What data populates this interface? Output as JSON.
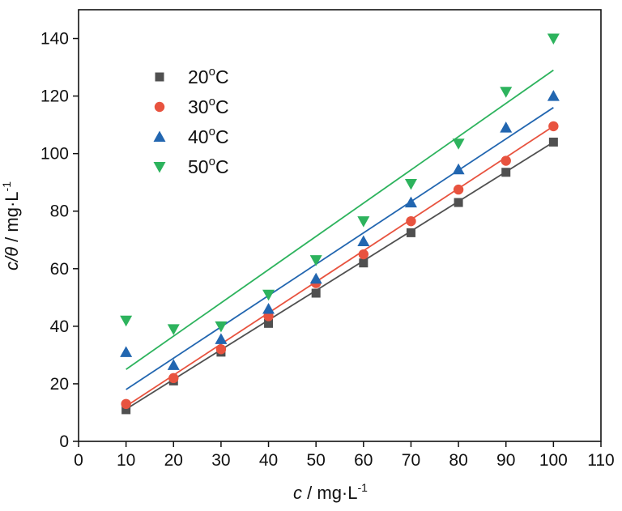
{
  "chart_data": {
    "type": "scatter",
    "xlabel": "c / mg·L-1",
    "ylabel": "c/θ / mg·L-1",
    "xlabel_parts": {
      "var": "c",
      "unit": " / mg·L",
      "sup": "-1"
    },
    "ylabel_parts": {
      "var": "c/θ",
      "unit": " / mg·L",
      "sup": "-1"
    },
    "xlim": [
      0,
      110
    ],
    "ylim": [
      0,
      150
    ],
    "xticks": [
      0,
      10,
      20,
      30,
      40,
      50,
      60,
      70,
      80,
      90,
      100,
      110
    ],
    "yticks": [
      0,
      20,
      40,
      60,
      80,
      100,
      120,
      140
    ],
    "grid": false,
    "legend_position": "top-left",
    "x": [
      10,
      20,
      30,
      40,
      50,
      60,
      70,
      80,
      90,
      100
    ],
    "series": [
      {
        "name": "20°C",
        "name_parts": {
          "num": "20",
          "sup": "o",
          "unit": "C"
        },
        "marker": "square",
        "color": "#505050",
        "values": [
          11,
          21,
          31,
          41,
          51.5,
          62,
          72.5,
          83,
          93.5,
          104
        ],
        "fit": {
          "x": [
            10,
            100
          ],
          "y": [
            11.2,
            104
          ]
        }
      },
      {
        "name": "30°C",
        "name_parts": {
          "num": "30",
          "sup": "o",
          "unit": "C"
        },
        "marker": "circle",
        "color": "#e8533f",
        "values": [
          13,
          22,
          32,
          43.5,
          55,
          65,
          76.5,
          87.5,
          97.5,
          109.5
        ],
        "fit": {
          "x": [
            10,
            100
          ],
          "y": [
            12.2,
            109.5
          ]
        }
      },
      {
        "name": "40°C",
        "name_parts": {
          "num": "40",
          "sup": "o",
          "unit": "C"
        },
        "marker": "triangle-up",
        "color": "#2266b0",
        "values": [
          31,
          26.5,
          35.5,
          46,
          56.5,
          69.5,
          83,
          94.5,
          109,
          120
        ],
        "fit": {
          "x": [
            10,
            100
          ],
          "y": [
            18,
            116
          ]
        }
      },
      {
        "name": "50°C",
        "name_parts": {
          "num": "50",
          "sup": "o",
          "unit": "C"
        },
        "marker": "triangle-down",
        "color": "#2db35d",
        "values": [
          42,
          39,
          40,
          51,
          63,
          76.5,
          89.5,
          103.5,
          121.5,
          140
        ],
        "fit": {
          "x": [
            10,
            100
          ],
          "y": [
            25,
            129
          ]
        }
      }
    ]
  }
}
